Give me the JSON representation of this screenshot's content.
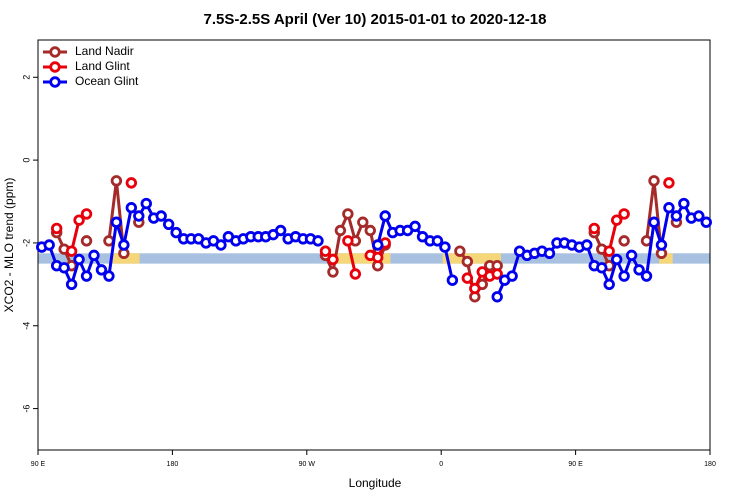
{
  "chart_data": {
    "type": "line",
    "title": "7.5S-2.5S April (Ver 10)   2015-01-01 to 2020-12-18",
    "xlabel": "Longitude",
    "ylabel": "XCO2 - MLO trend (ppm)",
    "xlim": [
      90,
      540
    ],
    "ylim": [
      -7,
      2.9
    ],
    "xticks": [
      {
        "value": 90,
        "label": "90 E"
      },
      {
        "value": 180,
        "label": "180"
      },
      {
        "value": 270,
        "label": "90 W"
      },
      {
        "value": 360,
        "label": "0"
      },
      {
        "value": 450,
        "label": "90 E"
      },
      {
        "value": 540,
        "label": "180"
      }
    ],
    "yticks": [
      -6,
      -4,
      -2,
      0,
      2
    ],
    "grid": false,
    "legend": "top-left",
    "reference_band": {
      "range": [
        -2.5,
        -2.25
      ],
      "color": "#a9c1e0",
      "highlights": [
        [
          140,
          158
        ],
        [
          285,
          326
        ],
        [
          361,
          400
        ],
        [
          506,
          515
        ]
      ],
      "highlight_color": "#f5d77a"
    },
    "x": [
      92.5,
      97.5,
      102.5,
      107.5,
      112.5,
      117.5,
      122.5,
      127.5,
      132.5,
      137.5,
      142.5,
      147.5,
      152.5,
      157.5,
      162.5,
      167.5,
      172.5,
      177.5,
      182.5,
      187.5,
      192.5,
      197.5,
      202.5,
      207.5,
      212.5,
      217.5,
      222.5,
      227.5,
      232.5,
      237.5,
      242.5,
      247.5,
      252.5,
      257.5,
      262.5,
      267.5,
      272.5,
      277.5,
      282.5,
      287.5,
      292.5,
      297.5,
      302.5,
      307.5,
      312.5,
      317.5,
      322.5,
      327.5,
      332.5,
      337.5,
      342.5,
      347.5,
      352.5,
      357.5,
      362.5,
      367.5,
      372.5,
      377.5,
      382.5,
      387.5,
      392.5,
      397.5,
      402.5,
      407.5,
      412.5,
      417.5,
      422.5,
      427.5,
      432.5,
      437.5,
      442.5,
      447.5,
      452.5,
      457.5,
      462.5,
      467.5,
      472.5,
      477.5,
      482.5,
      487.5,
      492.5,
      497.5,
      502.5,
      507.5,
      512.5,
      517.5,
      522.5,
      527.5,
      532.5,
      537.5
    ],
    "series": [
      {
        "name": "Land Nadir",
        "color": "#a52a2a",
        "values": [
          null,
          null,
          -1.75,
          -2.15,
          -2.55,
          null,
          -1.95,
          null,
          null,
          -1.95,
          -0.5,
          -2.25,
          null,
          -1.5,
          null,
          null,
          null,
          null,
          null,
          null,
          null,
          null,
          null,
          null,
          null,
          null,
          null,
          null,
          null,
          null,
          null,
          null,
          null,
          null,
          null,
          null,
          null,
          null,
          -2.3,
          -2.7,
          -1.7,
          -1.3,
          -1.95,
          -1.5,
          -1.7,
          -2.55,
          -2.05,
          null,
          null,
          null,
          null,
          null,
          null,
          null,
          null,
          null,
          -2.2,
          -2.45,
          -3.3,
          -3.0,
          -2.55,
          -2.55,
          null,
          null,
          null,
          null,
          null,
          null,
          null,
          null,
          null,
          null,
          null,
          null,
          -1.75,
          -2.15,
          -2.55,
          null,
          -1.95,
          null,
          null,
          -1.95,
          -0.5,
          -2.25,
          null,
          -1.5,
          null,
          null,
          null,
          null
        ]
      },
      {
        "name": "Land Glint",
        "color": "#e8000b",
        "values": [
          null,
          null,
          -1.65,
          null,
          -2.2,
          -1.45,
          -1.3,
          null,
          null,
          null,
          null,
          null,
          -0.55,
          null,
          null,
          null,
          null,
          null,
          null,
          null,
          null,
          null,
          null,
          null,
          null,
          null,
          null,
          null,
          null,
          null,
          null,
          null,
          null,
          null,
          null,
          null,
          null,
          null,
          -2.2,
          -2.4,
          null,
          -1.95,
          -2.75,
          null,
          -2.3,
          -2.35,
          -2.0,
          null,
          null,
          null,
          null,
          null,
          null,
          null,
          null,
          null,
          null,
          -2.85,
          -3.1,
          -2.7,
          -2.8,
          -2.75,
          null,
          null,
          null,
          null,
          null,
          null,
          null,
          null,
          null,
          null,
          null,
          null,
          -1.65,
          null,
          -2.2,
          -1.45,
          -1.3,
          null,
          null,
          null,
          null,
          null,
          -0.55,
          null,
          null,
          null,
          null,
          null
        ]
      },
      {
        "name": "Ocean Glint",
        "color": "#0000ee",
        "values": [
          -2.1,
          -2.05,
          -2.55,
          -2.6,
          -3.0,
          -2.4,
          -2.8,
          -2.3,
          -2.65,
          -2.8,
          -1.5,
          -2.05,
          -1.15,
          -1.35,
          -1.05,
          -1.4,
          -1.35,
          -1.55,
          -1.75,
          -1.9,
          -1.9,
          -1.9,
          -2.0,
          -1.95,
          -2.05,
          -1.85,
          -1.95,
          -1.9,
          -1.85,
          -1.85,
          -1.85,
          -1.8,
          -1.7,
          -1.9,
          -1.85,
          -1.9,
          -1.9,
          -1.95,
          null,
          null,
          null,
          null,
          null,
          null,
          null,
          -2.05,
          -1.35,
          -1.75,
          -1.7,
          -1.7,
          -1.6,
          -1.85,
          -1.95,
          -1.95,
          -2.1,
          -2.9,
          null,
          null,
          null,
          null,
          null,
          -3.3,
          -2.9,
          -2.8,
          -2.2,
          -2.3,
          -2.25,
          -2.2,
          -2.25,
          -2.0,
          -2.0,
          -2.05,
          -2.1,
          -2.05,
          -2.55,
          -2.6,
          -3.0,
          -2.4,
          -2.8,
          -2.3,
          -2.65,
          -2.8,
          -1.5,
          -2.05,
          -1.15,
          -1.35,
          -1.05,
          -1.4,
          -1.35,
          -1.5
        ]
      }
    ]
  }
}
